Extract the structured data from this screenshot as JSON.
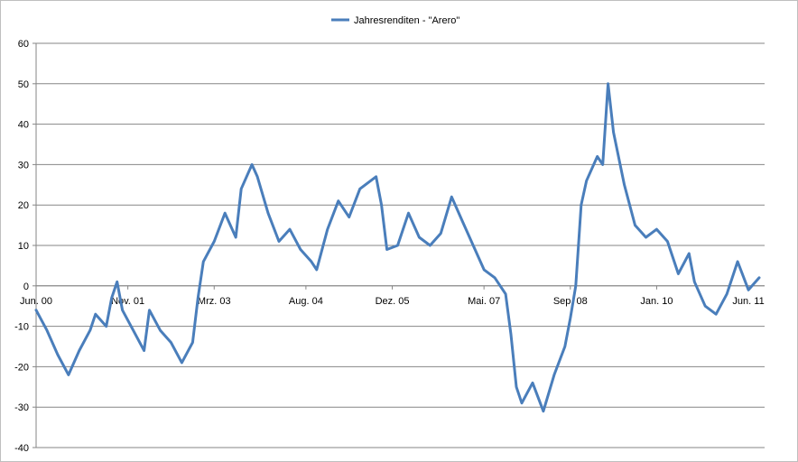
{
  "chart_data": {
    "type": "line",
    "legend_position": "top-center",
    "grid": {
      "horizontal": true,
      "vertical": false
    },
    "ylim": [
      -40,
      60
    ],
    "y_ticks": [
      60,
      50,
      40,
      30,
      20,
      10,
      0,
      -10,
      -20,
      -30,
      -40
    ],
    "x_range": [
      "2000-06",
      "2011-09"
    ],
    "x_ticks": [
      {
        "date": "2000-06",
        "label": "Jun. 00"
      },
      {
        "date": "2001-11",
        "label": "Nov. 01"
      },
      {
        "date": "2003-03",
        "label": "Mrz. 03"
      },
      {
        "date": "2004-08",
        "label": "Aug. 04"
      },
      {
        "date": "2005-12",
        "label": "Dez. 05"
      },
      {
        "date": "2007-05",
        "label": "Mai. 07"
      },
      {
        "date": "2008-09",
        "label": "Sep. 08"
      },
      {
        "date": "2010-01",
        "label": "Jan. 10"
      },
      {
        "date": "2011-06",
        "label": "Jun. 11"
      }
    ],
    "series": [
      {
        "name": "Jahresrenditen - \"Arero\"",
        "color": "#4a7ebb",
        "points": [
          [
            "2000-06",
            -6
          ],
          [
            "2000-08",
            -11
          ],
          [
            "2000-10",
            -17
          ],
          [
            "2000-12",
            -22
          ],
          [
            "2001-02",
            -16
          ],
          [
            "2001-04",
            -11
          ],
          [
            "2001-05",
            -7
          ],
          [
            "2001-07",
            -10
          ],
          [
            "2001-08",
            -3
          ],
          [
            "2001-09",
            1
          ],
          [
            "2001-10",
            -6
          ],
          [
            "2001-12",
            -11
          ],
          [
            "2002-02",
            -16
          ],
          [
            "2002-03",
            -6
          ],
          [
            "2002-05",
            -11
          ],
          [
            "2002-07",
            -14
          ],
          [
            "2002-09",
            -19
          ],
          [
            "2002-11",
            -14
          ],
          [
            "2002-12",
            -3
          ],
          [
            "2003-01",
            6
          ],
          [
            "2003-03",
            11
          ],
          [
            "2003-05",
            18
          ],
          [
            "2003-07",
            12
          ],
          [
            "2003-08",
            24
          ],
          [
            "2003-10",
            30
          ],
          [
            "2003-11",
            27
          ],
          [
            "2004-01",
            18
          ],
          [
            "2004-03",
            11
          ],
          [
            "2004-05",
            14
          ],
          [
            "2004-07",
            9
          ],
          [
            "2004-09",
            6
          ],
          [
            "2004-10",
            4
          ],
          [
            "2004-12",
            14
          ],
          [
            "2005-02",
            21
          ],
          [
            "2005-04",
            17
          ],
          [
            "2005-06",
            24
          ],
          [
            "2005-09",
            27
          ],
          [
            "2005-10",
            20
          ],
          [
            "2005-11",
            9
          ],
          [
            "2006-01",
            10
          ],
          [
            "2006-03",
            18
          ],
          [
            "2006-05",
            12
          ],
          [
            "2006-07",
            10
          ],
          [
            "2006-09",
            13
          ],
          [
            "2006-11",
            22
          ],
          [
            "2007-01",
            16
          ],
          [
            "2007-03",
            10
          ],
          [
            "2007-05",
            4
          ],
          [
            "2007-07",
            2
          ],
          [
            "2007-09",
            -2
          ],
          [
            "2007-10",
            -12
          ],
          [
            "2007-11",
            -25
          ],
          [
            "2007-12",
            -29
          ],
          [
            "2008-02",
            -24
          ],
          [
            "2008-04",
            -31
          ],
          [
            "2008-06",
            -22
          ],
          [
            "2008-08",
            -15
          ],
          [
            "2008-09",
            -8
          ],
          [
            "2008-10",
            0
          ],
          [
            "2008-11",
            20
          ],
          [
            "2008-12",
            26
          ],
          [
            "2009-02",
            32
          ],
          [
            "2009-03",
            30
          ],
          [
            "2009-04",
            50
          ],
          [
            "2009-05",
            38
          ],
          [
            "2009-07",
            25
          ],
          [
            "2009-09",
            15
          ],
          [
            "2009-11",
            12
          ],
          [
            "2010-01",
            14
          ],
          [
            "2010-03",
            11
          ],
          [
            "2010-05",
            3
          ],
          [
            "2010-07",
            8
          ],
          [
            "2010-08",
            1
          ],
          [
            "2010-10",
            -5
          ],
          [
            "2010-12",
            -7
          ],
          [
            "2011-02",
            -2
          ],
          [
            "2011-04",
            6
          ],
          [
            "2011-06",
            -1
          ],
          [
            "2011-08",
            2
          ]
        ]
      }
    ]
  }
}
